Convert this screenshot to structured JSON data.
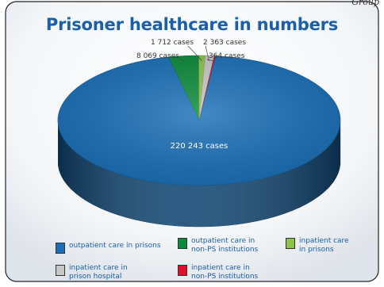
{
  "header": {
    "corner_text": "Group"
  },
  "chart_data": {
    "type": "pie",
    "title": "Prisoner healthcare in numbers",
    "unit": "cases",
    "style": "3d",
    "slices": [
      {
        "label": "outpatient care in prisons",
        "value": 220243,
        "value_label": "220 243 cases",
        "color": "#1a6fb8"
      },
      {
        "label": "outpatient care in\nnon-PS institutions",
        "value": 8069,
        "value_label": "8 069 cases",
        "color": "#0a8a3a"
      },
      {
        "label": "inpatient care\nin prisons",
        "value": 1712,
        "value_label": "1 712 cases",
        "color": "#8cc44a"
      },
      {
        "label": "inpatient care in\nprison hospital",
        "value": 2363,
        "value_label": "2 363 cases",
        "color": "#c8c8c8"
      },
      {
        "label": "inpatient care in\nnon-PS institutions",
        "value": 364,
        "value_label": "364 cases",
        "color": "#e0102a"
      }
    ],
    "legend_placement": "bottom"
  }
}
